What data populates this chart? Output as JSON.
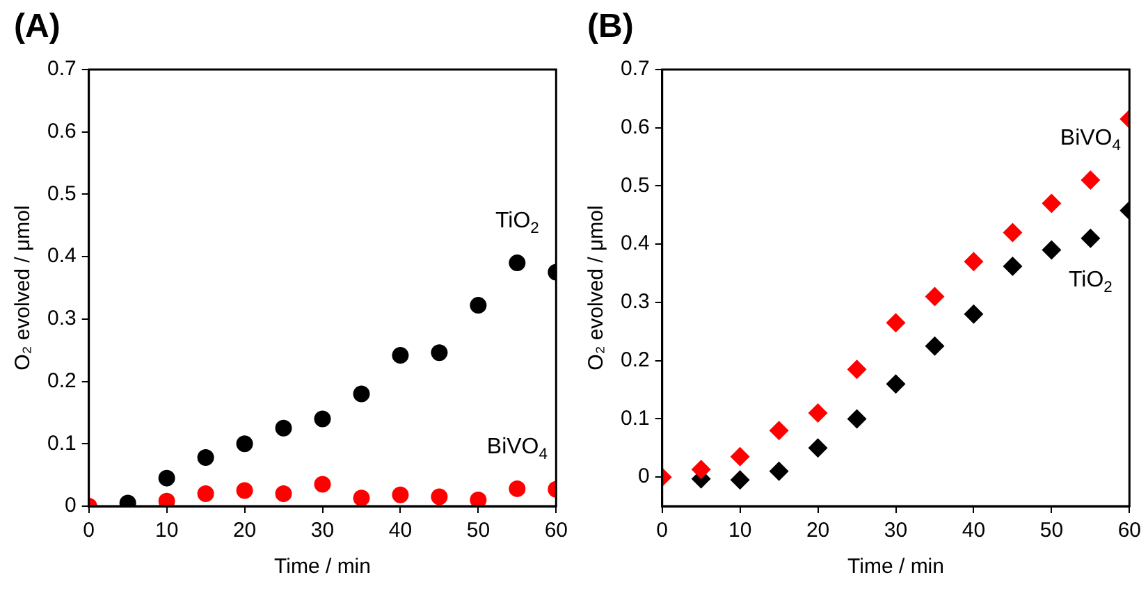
{
  "chart_data": [
    {
      "type": "scatter",
      "xlabel": "Time / min",
      "ylabel": "O₂ evolved / μmol",
      "marker": "circle",
      "xlim": [
        0,
        60
      ],
      "ylim": [
        0,
        0.7
      ],
      "xticks": [
        0,
        10,
        20,
        30,
        40,
        50,
        60
      ],
      "yticks": [
        0,
        0.1,
        0.2,
        0.3,
        0.4,
        0.5,
        0.6,
        0.7
      ],
      "series": [
        {
          "name": "TiO$_{2}$",
          "color": "#000000",
          "x": [
            5,
            10,
            15,
            20,
            25,
            30,
            35,
            40,
            45,
            50,
            55,
            60
          ],
          "values": [
            0.005,
            0.045,
            0.078,
            0.1,
            0.125,
            0.14,
            0.18,
            0.242,
            0.246,
            0.322,
            0.39,
            0.375
          ]
        },
        {
          "name": "BiVO$_{4}$",
          "color": "#ff0000",
          "x": [
            0,
            10,
            15,
            20,
            25,
            30,
            35,
            40,
            45,
            50,
            55,
            60
          ],
          "values": [
            0,
            0.008,
            0.02,
            0.025,
            0.02,
            0.035,
            0.013,
            0.018,
            0.015,
            0.01,
            0.028,
            0.027
          ]
        }
      ],
      "annotations": [
        "(A)"
      ]
    },
    {
      "type": "scatter",
      "xlabel": "Time / min",
      "ylabel": "O₂ evolved / μmol",
      "marker": "diamond",
      "xlim": [
        0,
        60
      ],
      "ylim": [
        -0.05,
        0.7
      ],
      "xticks": [
        0,
        10,
        20,
        30,
        40,
        50,
        60
      ],
      "yticks": [
        0,
        0.1,
        0.2,
        0.3,
        0.4,
        0.5,
        0.6,
        0.7
      ],
      "series": [
        {
          "name": "BiVO$_{4}$",
          "color": "#ff0000",
          "x": [
            0,
            5,
            10,
            15,
            20,
            25,
            30,
            35,
            40,
            45,
            50,
            55,
            60
          ],
          "values": [
            0,
            0.013,
            0.035,
            0.08,
            0.11,
            0.185,
            0.265,
            0.31,
            0.37,
            0.42,
            0.47,
            0.51,
            0.615
          ]
        },
        {
          "name": "TiO$_{2}$",
          "color": "#000000",
          "x": [
            5,
            10,
            15,
            20,
            25,
            30,
            35,
            40,
            45,
            50,
            55,
            60
          ],
          "values": [
            -0.003,
            -0.005,
            0.01,
            0.05,
            0.1,
            0.16,
            0.225,
            0.28,
            0.362,
            0.39,
            0.41,
            0.458
          ]
        }
      ],
      "annotations": [
        "(B)"
      ]
    }
  ]
}
